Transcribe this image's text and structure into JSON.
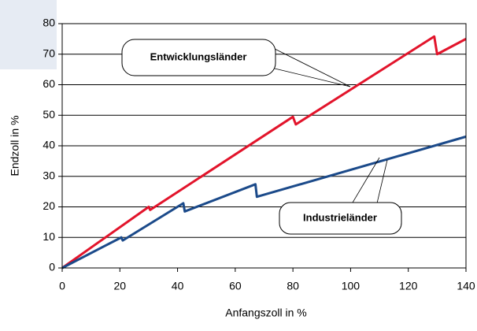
{
  "chart_data": {
    "type": "line",
    "xlabel": "Anfangszoll in %",
    "ylabel": "Endzoll in %",
    "series": [
      {
        "name": "Entwicklungsländer",
        "color": "#e2142b",
        "x": [
          0,
          30,
          30.5,
          80,
          81,
          129,
          130,
          140
        ],
        "values": [
          0,
          20,
          19,
          49.5,
          47,
          75.8,
          70,
          75
        ]
      },
      {
        "name": "Industrieländer",
        "color": "#1b4a8a",
        "x": [
          0,
          20.5,
          21,
          42,
          42.5,
          67,
          67.5,
          140
        ],
        "values": [
          0,
          10,
          9,
          21.2,
          18.5,
          27.4,
          23.3,
          43
        ]
      }
    ],
    "xlim": [
      0,
      140
    ],
    "xticks": [
      0,
      20,
      40,
      60,
      80,
      100,
      120,
      140
    ],
    "ylim": [
      0,
      80
    ],
    "yticks": [
      0,
      10,
      20,
      30,
      40,
      50,
      60,
      70,
      80
    ],
    "grid": true
  }
}
